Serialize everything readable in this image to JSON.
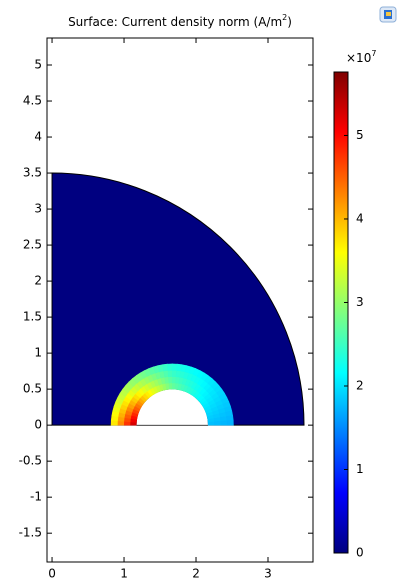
{
  "chart_data": {
    "type": "surface",
    "title": {
      "text": "Surface: Current density norm (A/m",
      "sup": "2",
      "end": ")"
    },
    "xlim": [
      -0.07,
      3.625
    ],
    "xticks": [
      0,
      1,
      2,
      3
    ],
    "ylim": [
      -1.9,
      5.375
    ],
    "yticks": [
      -1.5,
      -1,
      -0.5,
      0,
      0.5,
      1,
      1.5,
      2,
      2.5,
      3,
      3.5,
      4,
      4.5,
      5
    ],
    "colorbar": {
      "lim": [
        0,
        5.76
      ],
      "ticks": [
        0,
        1,
        2,
        3,
        4,
        5
      ],
      "multiplier": "×10",
      "exponent": "7"
    },
    "domain": {
      "radius": 3.5,
      "value": 0
    },
    "ring": {
      "center": [
        1.67,
        0
      ],
      "inner_radius": 0.5,
      "outer_radius": 0.85,
      "angles": [
        180,
        135,
        90,
        45,
        0
      ],
      "inner_values": [
        5.6,
        4.0,
        2.8,
        2.2,
        1.8
      ],
      "outer_values": [
        3.5,
        2.9,
        2.3,
        2.0,
        1.7
      ]
    }
  }
}
